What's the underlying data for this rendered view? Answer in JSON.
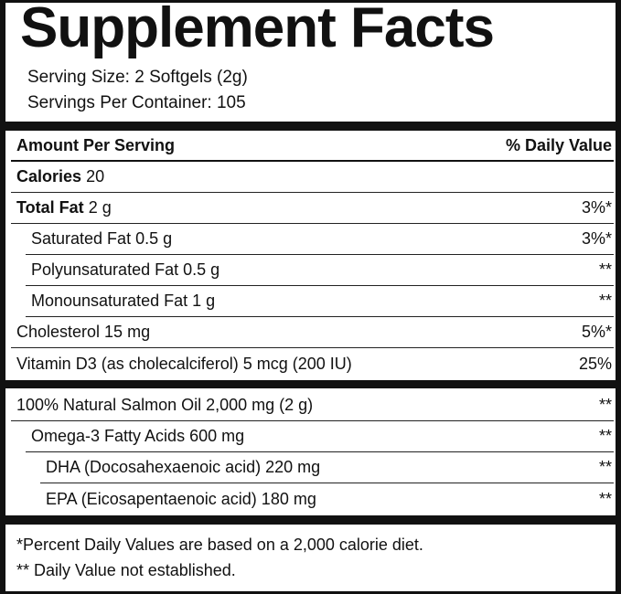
{
  "title": "Supplement Facts",
  "serving_size": "Serving Size: 2 Softgels (2g)",
  "servings_per_container": "Servings Per Container: 105",
  "header": {
    "amount": "Amount Per Serving",
    "daily_value": "% Daily Value"
  },
  "rows": [
    {
      "name": "Calories",
      "amount": "20"
    },
    {
      "name": "Total Fat",
      "amount": "2 g",
      "daily_value": "3%*"
    },
    {
      "name": "Saturated Fat 0.5 g",
      "daily_value": "3%*"
    },
    {
      "name": "Polyunsaturated Fat 0.5 g",
      "daily_value": "**"
    },
    {
      "name": "Monounsaturated Fat 1 g",
      "daily_value": "**"
    },
    {
      "name": "Cholesterol 15 mg",
      "daily_value": "5%*"
    },
    {
      "name": "Vitamin D3 (as cholecalciferol) 5 mcg (200 IU)",
      "daily_value": "25%"
    },
    {
      "name": "100% Natural Salmon Oil 2,000 mg (2 g)",
      "daily_value": "**"
    },
    {
      "name": "Omega-3 Fatty Acids 600 mg",
      "daily_value": "**"
    },
    {
      "name": "DHA (Docosahexaenoic acid) 220 mg",
      "daily_value": "**"
    },
    {
      "name": "EPA (Eicosapentaenoic acid) 180 mg",
      "daily_value": "**"
    }
  ],
  "footnotes": [
    "*Percent Daily Values are based on a 2,000 calorie diet.",
    "** Daily Value not established."
  ]
}
